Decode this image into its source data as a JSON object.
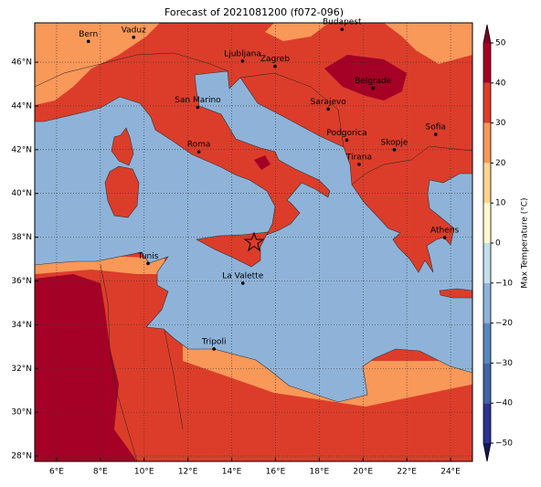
{
  "chart_data": {
    "type": "map",
    "title": "Forecast of 2021081200 (f072-096)",
    "xlim": [
      5,
      25
    ],
    "ylim": [
      27.75,
      47.8
    ],
    "xticks": [
      {
        "value": 6,
        "label": "6°E"
      },
      {
        "value": 8,
        "label": "8°E"
      },
      {
        "value": 10,
        "label": "10°E"
      },
      {
        "value": 12,
        "label": "12°E"
      },
      {
        "value": 14,
        "label": "14°E"
      },
      {
        "value": 16,
        "label": "16°E"
      },
      {
        "value": 18,
        "label": "18°E"
      },
      {
        "value": 20,
        "label": "20°E"
      },
      {
        "value": 22,
        "label": "22°E"
      },
      {
        "value": 24,
        "label": "24°E"
      }
    ],
    "yticks": [
      {
        "value": 28,
        "label": "28°N"
      },
      {
        "value": 30,
        "label": "30°N"
      },
      {
        "value": 32,
        "label": "32°N"
      },
      {
        "value": 34,
        "label": "34°N"
      },
      {
        "value": 36,
        "label": "36°N"
      },
      {
        "value": 38,
        "label": "38°N"
      },
      {
        "value": 40,
        "label": "40°N"
      },
      {
        "value": 42,
        "label": "42°N"
      },
      {
        "value": 44,
        "label": "44°N"
      },
      {
        "value": 46,
        "label": "46°N"
      }
    ],
    "grid": true,
    "cities": [
      {
        "name": "Bern",
        "lon": 7.45,
        "lat": 46.95
      },
      {
        "name": "Vaduz",
        "lon": 9.52,
        "lat": 47.14
      },
      {
        "name": "Budapest",
        "lon": 19.04,
        "lat": 47.5
      },
      {
        "name": "Ljubljana",
        "lon": 14.5,
        "lat": 46.05
      },
      {
        "name": "Zagreb",
        "lon": 15.98,
        "lat": 45.81
      },
      {
        "name": "Belgrade",
        "lon": 20.46,
        "lat": 44.82
      },
      {
        "name": "San Marino",
        "lon": 12.45,
        "lat": 43.94
      },
      {
        "name": "Sarajevo",
        "lon": 18.41,
        "lat": 43.86
      },
      {
        "name": "Sofia",
        "lon": 23.32,
        "lat": 42.7
      },
      {
        "name": "Podgorica",
        "lon": 19.26,
        "lat": 42.44
      },
      {
        "name": "Skopje",
        "lon": 21.43,
        "lat": 42.0
      },
      {
        "name": "Roma",
        "lon": 12.5,
        "lat": 41.9
      },
      {
        "name": "Tirana",
        "lon": 19.82,
        "lat": 41.33
      },
      {
        "name": "Athens",
        "lon": 23.73,
        "lat": 37.98
      },
      {
        "name": "Tunis",
        "lon": 10.18,
        "lat": 36.8
      },
      {
        "name": "La Valette",
        "lon": 14.51,
        "lat": 35.9
      },
      {
        "name": "Tripoli",
        "lon": 13.19,
        "lat": 32.89
      }
    ],
    "colorbar": {
      "label": "Max Temperature (°C)",
      "lim": [
        -50,
        50
      ],
      "ticks": [
        {
          "value": -50,
          "label": "−50"
        },
        {
          "value": -40,
          "label": "−40"
        },
        {
          "value": -30,
          "label": "−30"
        },
        {
          "value": -20,
          "label": "−20"
        },
        {
          "value": -10,
          "label": "−10"
        },
        0,
        10,
        20,
        30,
        40,
        50
      ],
      "colors": [
        "#2b3190",
        "#4163a8",
        "#5987bd",
        "#8fb3d8",
        "#c3dfec",
        "#fefbd2",
        "#fdd590",
        "#f89859",
        "#dc3d2a",
        "#a50026"
      ],
      "under_color": "#15155e",
      "over_color": "#800020"
    }
  }
}
